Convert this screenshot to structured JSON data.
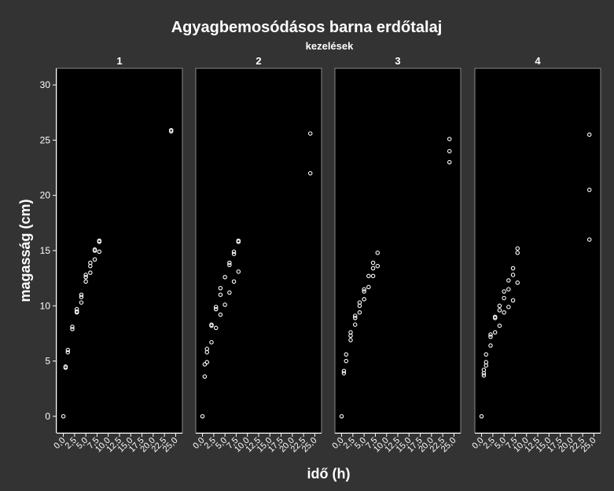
{
  "chart_data": {
    "type": "scatter",
    "title": "Agyagbemosódásos barna erdőtalaj",
    "subtitle": "kezelések",
    "xlabel": "idő (h)",
    "ylabel": "magasság (cm)",
    "xlim": [
      -1.5,
      26.5
    ],
    "ylim": [
      -1.5,
      31.5
    ],
    "x_ticks": [
      0,
      2.5,
      5,
      7.5,
      10,
      12.5,
      15,
      17.5,
      20,
      22.5,
      25
    ],
    "x_tick_labels": [
      "0,0",
      "2,5",
      "5,0",
      "7,5",
      "10,0",
      "12,5",
      "15,0",
      "17,5",
      "20,0",
      "22,5",
      "25,0"
    ],
    "y_ticks": [
      0,
      5,
      10,
      15,
      20,
      25,
      30
    ],
    "y_tick_labels": [
      "0",
      "5",
      "10",
      "15",
      "20",
      "25",
      "30"
    ],
    "grid": false,
    "marker": "open-circle",
    "colors": {
      "background": "#333333",
      "panel": "#000000",
      "marker": "#ffffff"
    },
    "panels": [
      {
        "label": "1",
        "points": [
          [
            0,
            0
          ],
          [
            0.5,
            4.4
          ],
          [
            0.5,
            4.5
          ],
          [
            1,
            5.8
          ],
          [
            1,
            6
          ],
          [
            2,
            7.9
          ],
          [
            2,
            8.1
          ],
          [
            3,
            9.4
          ],
          [
            3,
            9.5
          ],
          [
            3,
            9.7
          ],
          [
            4,
            10.3
          ],
          [
            4,
            10.8
          ],
          [
            4,
            11
          ],
          [
            5,
            12.2
          ],
          [
            5,
            12.6
          ],
          [
            5,
            12.8
          ],
          [
            6,
            13
          ],
          [
            6,
            13.6
          ],
          [
            6,
            13.9
          ],
          [
            7,
            14.2
          ],
          [
            7,
            15
          ],
          [
            7,
            15.1
          ],
          [
            8,
            14.9
          ],
          [
            8,
            15.8
          ],
          [
            8,
            15.9
          ],
          [
            24,
            25.8
          ],
          [
            24,
            25.9
          ]
        ]
      },
      {
        "label": "2",
        "points": [
          [
            0,
            0
          ],
          [
            0.5,
            3.6
          ],
          [
            0.5,
            4.7
          ],
          [
            1,
            4.9
          ],
          [
            1,
            5.8
          ],
          [
            1,
            6.1
          ],
          [
            2,
            6.7
          ],
          [
            2,
            8.2
          ],
          [
            2,
            8.3
          ],
          [
            3,
            8
          ],
          [
            3,
            9.7
          ],
          [
            3,
            9.9
          ],
          [
            4,
            9.2
          ],
          [
            4,
            11
          ],
          [
            4,
            11.6
          ],
          [
            5,
            10.1
          ],
          [
            5,
            12.6
          ],
          [
            6,
            11.2
          ],
          [
            6,
            13.7
          ],
          [
            6,
            13.9
          ],
          [
            7,
            12.2
          ],
          [
            7,
            14.7
          ],
          [
            7,
            14.9
          ],
          [
            8,
            13.1
          ],
          [
            8,
            15.8
          ],
          [
            8,
            15.9
          ],
          [
            24,
            25.6
          ],
          [
            24,
            22
          ]
        ]
      },
      {
        "label": "3",
        "points": [
          [
            0,
            0
          ],
          [
            0.5,
            3.9
          ],
          [
            0.5,
            4.1
          ],
          [
            1,
            5
          ],
          [
            1,
            5.6
          ],
          [
            2,
            6.9
          ],
          [
            2,
            7.3
          ],
          [
            2,
            7.6
          ],
          [
            3,
            8.3
          ],
          [
            3,
            8.9
          ],
          [
            3,
            9.1
          ],
          [
            4,
            9.4
          ],
          [
            4,
            10
          ],
          [
            4,
            10.3
          ],
          [
            5,
            10.6
          ],
          [
            5,
            11.3
          ],
          [
            5,
            11.5
          ],
          [
            6,
            11.7
          ],
          [
            6,
            12.7
          ],
          [
            7,
            12.7
          ],
          [
            7,
            13.4
          ],
          [
            7,
            13.9
          ],
          [
            8,
            13.6
          ],
          [
            8,
            14.8
          ],
          [
            24,
            23
          ],
          [
            24,
            24
          ],
          [
            24,
            25.1
          ]
        ]
      },
      {
        "label": "4",
        "points": [
          [
            0,
            0
          ],
          [
            0.5,
            3.7
          ],
          [
            0.5,
            3.9
          ],
          [
            0.5,
            4.2
          ],
          [
            1,
            4.6
          ],
          [
            1,
            4.9
          ],
          [
            1,
            5.6
          ],
          [
            2,
            6.4
          ],
          [
            2,
            7.2
          ],
          [
            2,
            7.4
          ],
          [
            3,
            7.6
          ],
          [
            3,
            8.9
          ],
          [
            3,
            9
          ],
          [
            4,
            8.2
          ],
          [
            4,
            9.6
          ],
          [
            4,
            10
          ],
          [
            5,
            9.4
          ],
          [
            5,
            10.7
          ],
          [
            5,
            11.3
          ],
          [
            6,
            9.9
          ],
          [
            6,
            11.5
          ],
          [
            6,
            12.3
          ],
          [
            7,
            10.5
          ],
          [
            7,
            12.8
          ],
          [
            7,
            13.4
          ],
          [
            8,
            12.1
          ],
          [
            8,
            14.8
          ],
          [
            8,
            15.2
          ],
          [
            24,
            16
          ],
          [
            24,
            20.5
          ],
          [
            24,
            25.5
          ]
        ]
      }
    ]
  }
}
